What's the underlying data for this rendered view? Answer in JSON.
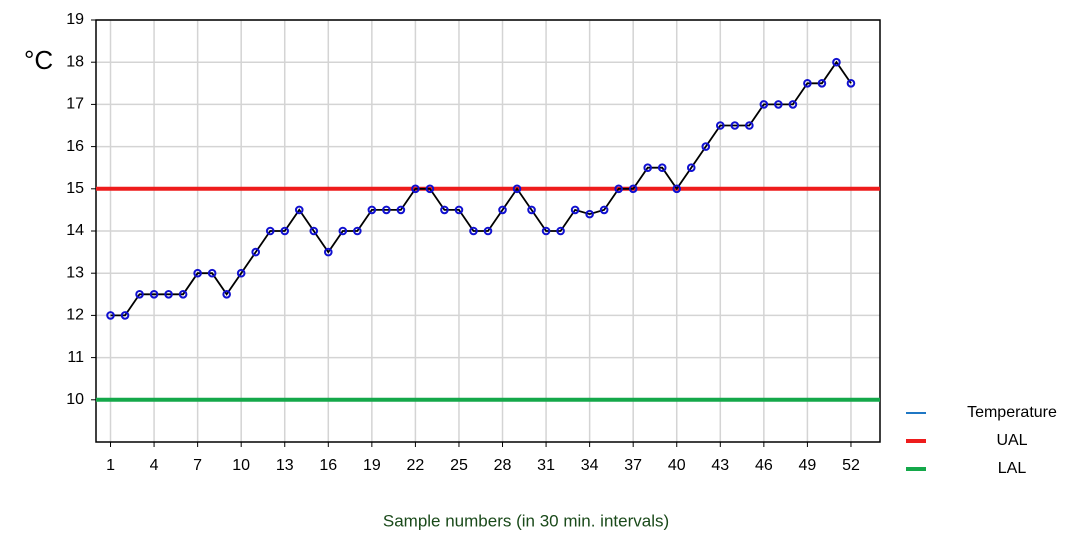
{
  "chart_data": {
    "type": "line",
    "ylabel": "°C",
    "xlabel": "Sample numbers (in 30 min. intervals)",
    "x": [
      1,
      2,
      3,
      4,
      5,
      6,
      7,
      8,
      9,
      10,
      11,
      12,
      13,
      14,
      15,
      16,
      17,
      18,
      19,
      20,
      21,
      22,
      23,
      24,
      25,
      26,
      27,
      28,
      29,
      30,
      31,
      32,
      33,
      34,
      35,
      36,
      37,
      38,
      39,
      40,
      41,
      42,
      43,
      44,
      45,
      46,
      47,
      48,
      49,
      50,
      51,
      52
    ],
    "series": [
      {
        "name": "Temperature",
        "color": "#1f77c4",
        "marker_color": "#1010d0",
        "line_color": "#000000",
        "values": [
          12,
          12,
          12.5,
          12.5,
          12.5,
          12.5,
          13,
          13,
          12.5,
          13,
          13.5,
          14,
          14,
          14.5,
          14,
          13.5,
          14,
          14,
          14.5,
          14.5,
          14.5,
          15,
          15,
          14.5,
          14.5,
          14,
          14,
          14.5,
          15,
          14.5,
          14,
          14,
          14.5,
          14.4,
          14.5,
          15,
          15,
          15.5,
          15.5,
          15,
          15.5,
          16,
          16.5,
          16.5,
          16.5,
          17,
          17,
          17,
          17.5,
          17.5,
          18,
          17.5
        ]
      }
    ],
    "lines": [
      {
        "name": "UAL",
        "color": "#ee1c1c",
        "value": 15
      },
      {
        "name": "LAL",
        "color": "#14a84a",
        "value": 10
      }
    ],
    "xlim": [
      0,
      54
    ],
    "xticks": [
      1,
      4,
      7,
      10,
      13,
      16,
      19,
      22,
      25,
      28,
      31,
      34,
      37,
      40,
      43,
      46,
      49,
      52
    ],
    "ylim": [
      9,
      19
    ],
    "yticks": [
      10,
      11,
      12,
      13,
      14,
      15,
      16,
      17,
      18,
      19
    ],
    "grid": true
  }
}
